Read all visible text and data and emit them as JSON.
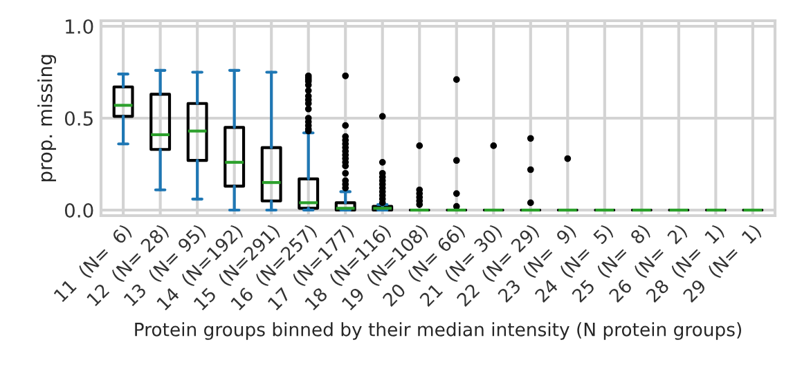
{
  "chart_data": {
    "type": "box",
    "ylabel": "prop. missing",
    "xlabel": "Protein groups binned by their median intensity (N protein groups)",
    "categories": [
      "11  (N=  6)",
      "12  (N= 28)",
      "13  (N= 95)",
      "14  (N=192)",
      "15  (N=291)",
      "16  (N=257)",
      "17  (N=177)",
      "18  (N=116)",
      "19  (N=108)",
      "20  (N= 66)",
      "21  (N= 30)",
      "22  (N= 29)",
      "23  (N=  9)",
      "24  (N=  5)",
      "25  (N=  8)",
      "26  (N=  2)",
      "28  (N=  1)",
      "29  (N=  1)"
    ],
    "boxes": [
      {
        "low": 0.36,
        "q1": 0.51,
        "median": 0.57,
        "q3": 0.67,
        "high": 0.74
      },
      {
        "low": 0.11,
        "q1": 0.33,
        "median": 0.41,
        "q3": 0.63,
        "high": 0.76
      },
      {
        "low": 0.06,
        "q1": 0.27,
        "median": 0.43,
        "q3": 0.58,
        "high": 0.75
      },
      {
        "low": 0.0,
        "q1": 0.13,
        "median": 0.26,
        "q3": 0.45,
        "high": 0.76
      },
      {
        "low": 0.0,
        "q1": 0.05,
        "median": 0.15,
        "q3": 0.34,
        "high": 0.75
      },
      {
        "low": 0.0,
        "q1": 0.01,
        "median": 0.04,
        "q3": 0.17,
        "high": 0.42,
        "outliers": [
          0.73,
          0.72,
          0.71,
          0.7,
          0.68,
          0.65,
          0.62,
          0.6,
          0.58,
          0.55,
          0.5,
          0.48,
          0.46,
          0.44,
          0.43
        ]
      },
      {
        "low": 0.0,
        "q1": 0.0,
        "median": 0.01,
        "q3": 0.04,
        "high": 0.1,
        "outliers": [
          0.73,
          0.46,
          0.4,
          0.38,
          0.36,
          0.34,
          0.32,
          0.3,
          0.28,
          0.26,
          0.24,
          0.2,
          0.16,
          0.14,
          0.12
        ]
      },
      {
        "low": 0.0,
        "q1": 0.0,
        "median": 0.01,
        "q3": 0.02,
        "high": 0.03,
        "outliers": [
          0.51,
          0.26,
          0.2,
          0.18,
          0.16,
          0.14,
          0.12,
          0.1,
          0.08,
          0.06,
          0.04
        ]
      },
      {
        "low": 0.0,
        "q1": 0.0,
        "median": 0.0,
        "q3": 0.0,
        "high": 0.0,
        "outliers": [
          0.35,
          0.11,
          0.09,
          0.07,
          0.05,
          0.03
        ]
      },
      {
        "low": 0.0,
        "q1": 0.0,
        "median": 0.0,
        "q3": 0.0,
        "high": 0.0,
        "outliers": [
          0.71,
          0.27,
          0.09,
          0.02
        ]
      },
      {
        "low": 0.0,
        "q1": 0.0,
        "median": 0.0,
        "q3": 0.0,
        "high": 0.0,
        "outliers": [
          0.35
        ]
      },
      {
        "low": 0.0,
        "q1": 0.0,
        "median": 0.0,
        "q3": 0.0,
        "high": 0.0,
        "outliers": [
          0.39,
          0.22,
          0.04
        ]
      },
      {
        "low": 0.0,
        "q1": 0.0,
        "median": 0.0,
        "q3": 0.0,
        "high": 0.0,
        "outliers": [
          0.28
        ]
      },
      {
        "low": 0.0,
        "q1": 0.0,
        "median": 0.0,
        "q3": 0.0,
        "high": 0.0
      },
      {
        "low": 0.0,
        "q1": 0.0,
        "median": 0.0,
        "q3": 0.0,
        "high": 0.0
      },
      {
        "low": 0.0,
        "q1": 0.0,
        "median": 0.0,
        "q3": 0.0,
        "high": 0.0
      },
      {
        "low": 0.0,
        "q1": 0.0,
        "median": 0.0,
        "q3": 0.0,
        "high": 0.0
      },
      {
        "low": 0.0,
        "q1": 0.0,
        "median": 0.0,
        "q3": 0.0,
        "high": 0.0
      }
    ],
    "ylim": [
      -0.03,
      1.03
    ],
    "yticks": [
      {
        "value": 0,
        "label": "0.0"
      },
      0.5,
      {
        "value": 1,
        "label": "1.0"
      }
    ],
    "grid": true,
    "legend": false
  }
}
